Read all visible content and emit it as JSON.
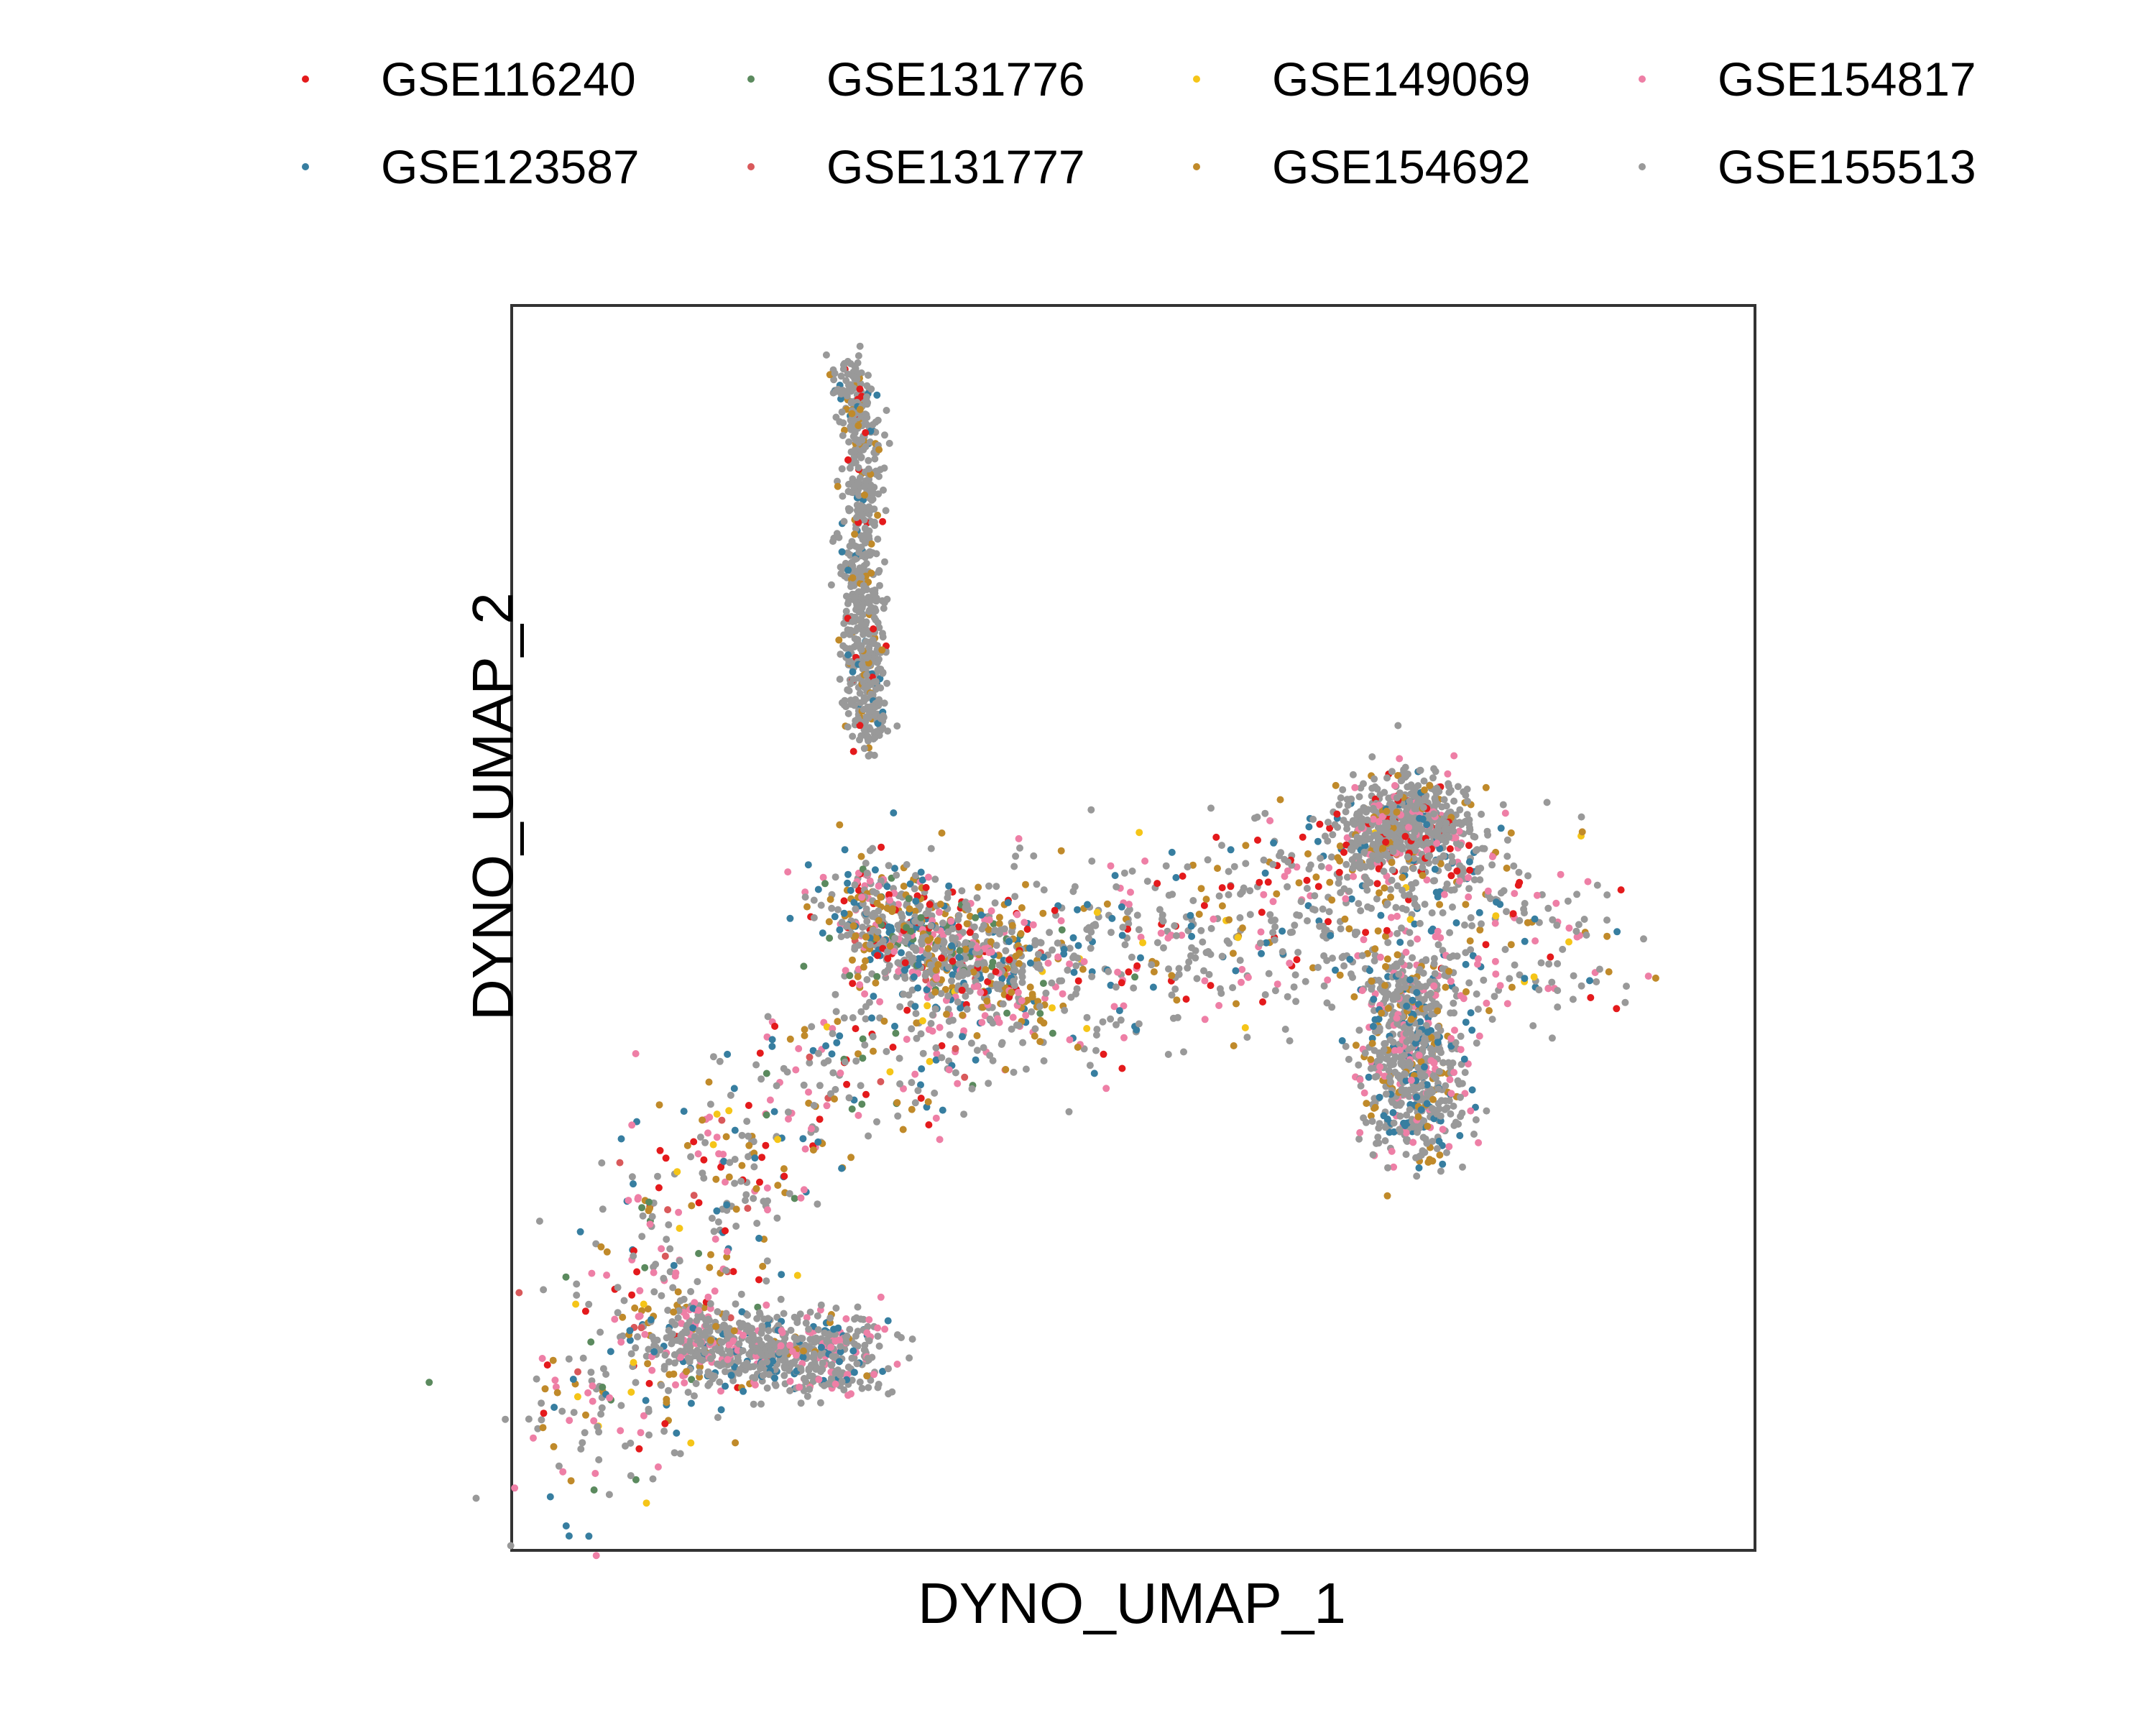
{
  "chart_data": {
    "type": "scatter",
    "xlabel": "DYNO_UMAP_1",
    "ylabel": "DYNO_UMAP_2",
    "x_ticks_shown": false,
    "y_ticks_shown": false,
    "legend_position": "top",
    "series": [
      {
        "name": "GSE116240",
        "color": "#e41a1c"
      },
      {
        "name": "GSE123587",
        "color": "#377ea0"
      },
      {
        "name": "GSE131776",
        "color": "#5b8a5e"
      },
      {
        "name": "GSE131777",
        "color": "#d9595b"
      },
      {
        "name": "GSE149069",
        "color": "#f5c518"
      },
      {
        "name": "GSE154692",
        "color": "#c08a2a"
      },
      {
        "name": "GSE154817",
        "color": "#ee7fa6"
      },
      {
        "name": "GSE155513",
        "color": "#999999"
      }
    ],
    "clusters": [
      {
        "shape": "vertical-stalk",
        "path": [
          [
            6.5,
            95
          ],
          [
            6.8,
            88
          ],
          [
            6.7,
            80
          ],
          [
            6.8,
            72
          ],
          [
            6.9,
            65
          ]
        ],
        "width": 0.9,
        "mix": {
          "GSE155513": 0.85,
          "GSE154692": 0.08,
          "GSE123587": 0.04,
          "GSE116240": 0.03
        }
      },
      {
        "shape": "left-arc",
        "path": [
          [
            1.5,
            8
          ],
          [
            2.5,
            17
          ],
          [
            3.5,
            26
          ],
          [
            5,
            34
          ],
          [
            6.8,
            41
          ],
          [
            8.5,
            44
          ],
          [
            10,
            44
          ]
        ],
        "width": 4.5,
        "mix": {
          "GSE155513": 0.38,
          "GSE154817": 0.2,
          "GSE154692": 0.14,
          "GSE123587": 0.1,
          "GSE116240": 0.08,
          "GSE131776": 0.05,
          "GSE149069": 0.03,
          "GSE131777": 0.02
        }
      },
      {
        "shape": "upper-bridge",
        "path": [
          [
            6.5,
            52
          ],
          [
            7.5,
            50
          ],
          [
            8.5,
            48
          ],
          [
            10,
            46.5
          ]
        ],
        "width": 2.5,
        "mix": {
          "GSE155513": 0.45,
          "GSE154817": 0.15,
          "GSE154692": 0.15,
          "GSE123587": 0.12,
          "GSE116240": 0.07,
          "GSE131776": 0.06
        }
      },
      {
        "shape": "right-lobe",
        "path": [
          [
            10.5,
            47
          ],
          [
            12.5,
            48
          ],
          [
            14.5,
            50
          ],
          [
            16.5,
            53
          ],
          [
            18.5,
            51
          ],
          [
            20.5,
            48
          ]
        ],
        "width": 4.5,
        "mix": {
          "GSE155513": 0.55,
          "GSE154817": 0.14,
          "GSE123587": 0.12,
          "GSE154692": 0.1,
          "GSE116240": 0.07,
          "GSE149069": 0.02
        }
      },
      {
        "shape": "right-top-knob",
        "path": [
          [
            16.5,
            57
          ],
          [
            17.3,
            59
          ],
          [
            18,
            57
          ]
        ],
        "width": 2.2,
        "mix": {
          "GSE155513": 0.7,
          "GSE154817": 0.1,
          "GSE116240": 0.08,
          "GSE154692": 0.07,
          "GSE123587": 0.05
        }
      },
      {
        "shape": "right-drop",
        "path": [
          [
            17.2,
            46
          ],
          [
            17.4,
            40
          ],
          [
            17.5,
            33
          ]
        ],
        "width": 2.2,
        "mix": {
          "GSE155513": 0.6,
          "GSE154817": 0.15,
          "GSE123587": 0.15,
          "GSE154692": 0.1
        }
      },
      {
        "shape": "left-tail",
        "path": [
          [
            3,
            17
          ],
          [
            5,
            16
          ],
          [
            6.8,
            15.5
          ]
        ],
        "width": 1.8,
        "mix": {
          "GSE155513": 0.7,
          "GSE154817": 0.15,
          "GSE123587": 0.1,
          "GSE154692": 0.05
        }
      }
    ],
    "xlim": [
      0,
      24
    ],
    "ylim": [
      0,
      100
    ]
  }
}
